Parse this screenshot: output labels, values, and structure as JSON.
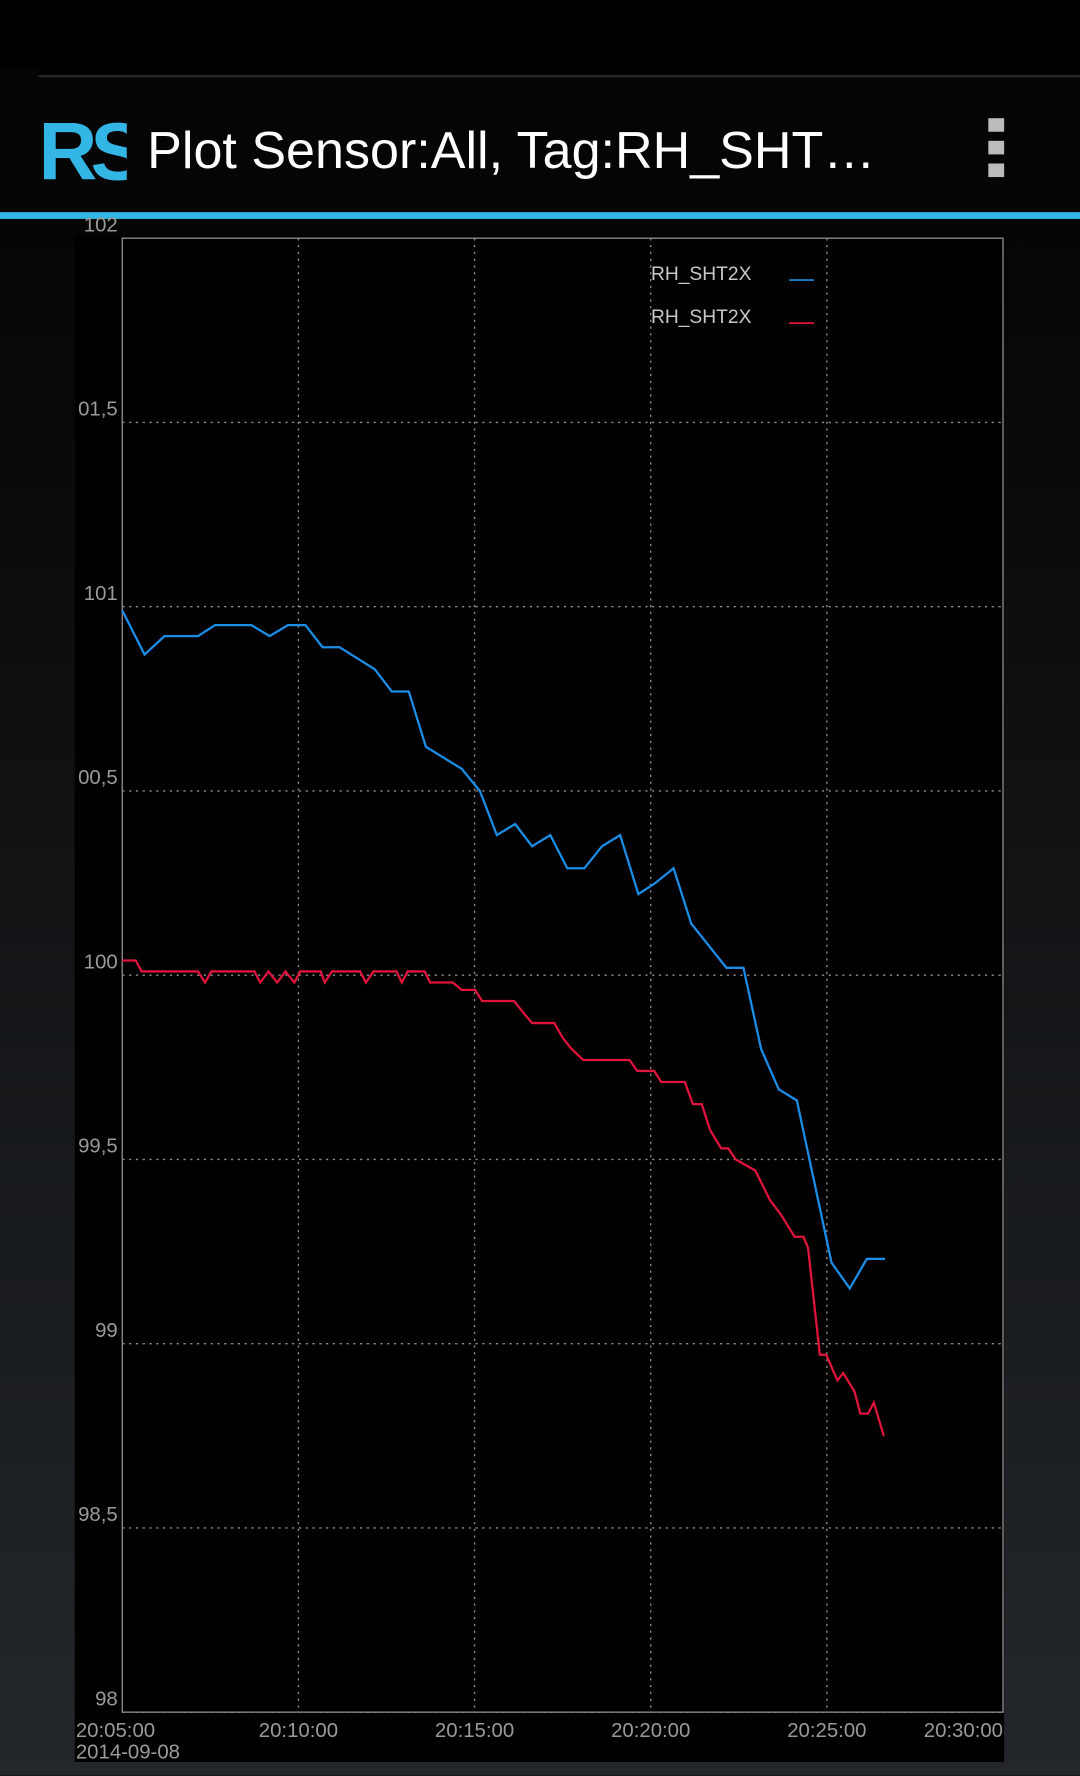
{
  "app_bar": {
    "logo": "RS",
    "title": "Plot Sensor:All, Tag:RH_SHT…"
  },
  "chart_data": {
    "type": "line",
    "grid": true,
    "legend": "top-right",
    "xlim": [
      "20:05:00",
      "20:30:00"
    ],
    "xticks": [
      "20:05:00",
      "20:10:00",
      "20:15:00",
      "20:20:00",
      "20:25:00",
      "20:30:00"
    ],
    "x_date_label": "2014-09-08",
    "ylim": [
      98,
      102
    ],
    "yticks": [
      98,
      {
        "value": 98.5,
        "label": "98,5"
      },
      99,
      {
        "value": 99.5,
        "label": "99,5"
      },
      100,
      {
        "value": 100.5,
        "label": "00,5"
      },
      101,
      {
        "value": 101.5,
        "label": "01,5"
      },
      102
    ],
    "series": [
      {
        "name": "RH_SHT2X",
        "color": "#1a8ee6",
        "x": [
          "20:05:00",
          "20:05:38",
          "20:06:12",
          "20:07:09",
          "20:07:38",
          "20:08:40",
          "20:09:11",
          "20:09:42",
          "20:10:12",
          "20:10:41",
          "20:11:10",
          "20:12:10",
          "20:12:39",
          "20:13:08",
          "20:13:37",
          "20:14:38",
          "20:15:09",
          "20:15:38",
          "20:16:09",
          "20:16:38",
          "20:17:09",
          "20:17:38",
          "20:18:07",
          "20:18:37",
          "20:19:08",
          "20:19:39",
          "20:20:08",
          "20:20:39",
          "20:21:09",
          "20:22:09",
          "20:22:38",
          "20:23:08",
          "20:23:38",
          "20:24:09",
          "20:25:08",
          "20:25:39",
          "20:26:08",
          "20:26:39"
        ],
        "values": [
          100.99,
          100.87,
          100.92,
          100.92,
          100.95,
          100.95,
          100.92,
          100.95,
          100.95,
          100.89,
          100.89,
          100.83,
          100.77,
          100.77,
          100.62,
          100.56,
          100.5,
          100.38,
          100.41,
          100.35,
          100.38,
          100.29,
          100.29,
          100.35,
          100.38,
          100.22,
          100.25,
          100.29,
          100.14,
          100.02,
          100.02,
          99.8,
          99.69,
          99.66,
          99.22,
          99.15,
          99.23,
          99.23
        ]
      },
      {
        "name": "RH_SHT2X",
        "color": "#e0143c",
        "x": [
          "20:05:00",
          "20:05:23",
          "20:05:33",
          "20:07:09",
          "20:07:21",
          "20:07:32",
          "20:08:45",
          "20:08:55",
          "20:09:09",
          "20:09:24",
          "20:09:38",
          "20:09:53",
          "20:10:03",
          "20:10:38",
          "20:10:45",
          "20:10:57",
          "20:11:45",
          "20:11:55",
          "20:12:08",
          "20:12:47",
          "20:12:56",
          "20:13:06",
          "20:13:35",
          "20:13:44",
          "20:14:23",
          "20:14:38",
          "20:15:01",
          "20:15:13",
          "20:16:07",
          "20:16:22",
          "20:16:38",
          "20:17:16",
          "20:17:30",
          "20:17:45",
          "20:18:05",
          "20:19:24",
          "20:19:37",
          "20:20:06",
          "20:20:18",
          "20:20:58",
          "20:21:12",
          "20:21:27",
          "20:21:41",
          "20:22:00",
          "20:22:12",
          "20:22:25",
          "20:22:58",
          "20:23:23",
          "20:23:42",
          "20:24:05",
          "20:24:20",
          "20:24:28",
          "20:24:48",
          "20:24:59",
          "20:25:18",
          "20:25:28",
          "20:25:47",
          "20:25:57",
          "20:26:10",
          "20:26:20",
          "20:26:37"
        ],
        "values": [
          100.04,
          100.04,
          100.01,
          100.01,
          99.98,
          100.01,
          100.01,
          99.98,
          100.01,
          99.98,
          100.01,
          99.98,
          100.01,
          100.01,
          99.98,
          100.01,
          100.01,
          99.98,
          100.01,
          100.01,
          99.98,
          100.01,
          100.01,
          99.98,
          99.98,
          99.96,
          99.96,
          99.93,
          99.93,
          99.9,
          99.87,
          99.87,
          99.83,
          99.8,
          99.77,
          99.77,
          99.74,
          99.74,
          99.71,
          99.71,
          99.65,
          99.65,
          99.58,
          99.53,
          99.53,
          99.5,
          99.47,
          99.39,
          99.35,
          99.29,
          99.29,
          99.26,
          98.97,
          98.97,
          98.9,
          98.92,
          98.87,
          98.81,
          98.81,
          98.84,
          98.75
        ]
      }
    ]
  }
}
